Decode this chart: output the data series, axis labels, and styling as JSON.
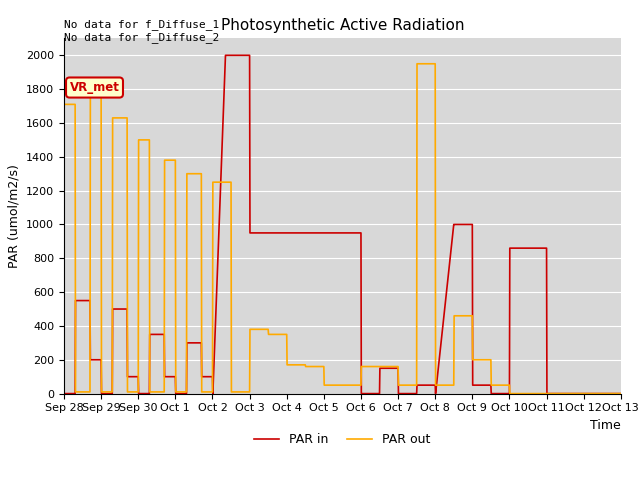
{
  "title": "Photosynthetic Active Radiation",
  "xlabel": "Time",
  "ylabel": "PAR (umol/m2/s)",
  "annotation_text": "No data for f_Diffuse_1\nNo data for f_Diffuse_2",
  "box_label": "VR_met",
  "legend_entries": [
    "PAR in",
    "PAR out"
  ],
  "line_colors": [
    "#cc0000",
    "#ffaa00"
  ],
  "background_color": "#d8d8d8",
  "ylim": [
    0,
    2100
  ],
  "x_tick_labels": [
    "Sep 28",
    "Sep 29",
    "Sep 30",
    "Oct 1",
    "Oct 2",
    "Oct 3",
    "Oct 4",
    "Oct 5",
    "Oct 6",
    "Oct 7",
    "Oct 8",
    "Oct 9",
    "Oct 10",
    "Oct 11",
    "Oct 12",
    "Oct 13"
  ],
  "par_in_x": [
    0,
    0.3,
    0.31,
    0.7,
    0.71,
    1.0,
    1.01,
    1.3,
    1.31,
    1.7,
    1.71,
    2.0,
    2.01,
    2.3,
    2.31,
    2.7,
    2.71,
    3.0,
    3.01,
    3.3,
    3.31,
    3.7,
    3.71,
    4.0,
    4.01,
    4.35,
    4.36,
    5.0,
    5.01,
    6.0,
    7.0,
    8.0,
    8.01,
    8.5,
    8.51,
    9.0,
    9.01,
    9.5,
    9.51,
    10.0,
    10.01,
    10.5,
    10.51,
    11.0,
    11.01,
    11.5,
    11.51,
    12.0,
    12.01,
    13.0,
    13.01,
    15.0
  ],
  "par_in_y": [
    0,
    0,
    550,
    550,
    200,
    200,
    0,
    0,
    500,
    500,
    100,
    100,
    0,
    0,
    350,
    350,
    100,
    100,
    0,
    0,
    300,
    300,
    100,
    100,
    0,
    2000,
    2000,
    2000,
    950,
    950,
    950,
    950,
    0,
    0,
    150,
    150,
    0,
    0,
    50,
    50,
    0,
    1000,
    1000,
    1000,
    50,
    50,
    0,
    0,
    860,
    860,
    0,
    0
  ],
  "par_out_x": [
    0,
    0.3,
    0.31,
    0.7,
    0.71,
    1.0,
    1.01,
    1.3,
    1.31,
    1.7,
    1.71,
    2.0,
    2.01,
    2.3,
    2.31,
    2.7,
    2.71,
    3.0,
    3.01,
    3.3,
    3.31,
    3.7,
    3.71,
    4.0,
    4.01,
    4.5,
    4.51,
    5.0,
    5.01,
    5.5,
    5.51,
    6.0,
    6.01,
    6.5,
    6.51,
    7.0,
    7.01,
    8.0,
    8.01,
    9.0,
    9.01,
    9.5,
    9.51,
    10.0,
    10.01,
    10.5,
    10.51,
    11.0,
    11.01,
    11.5,
    11.51,
    12.0,
    12.01,
    13.0,
    15.0
  ],
  "par_out_y": [
    1710,
    1710,
    10,
    10,
    1770,
    1770,
    10,
    10,
    1630,
    1630,
    10,
    10,
    1500,
    1500,
    10,
    10,
    1380,
    1380,
    10,
    10,
    1300,
    1300,
    10,
    10,
    1250,
    1250,
    10,
    10,
    380,
    380,
    350,
    350,
    170,
    170,
    160,
    160,
    50,
    50,
    160,
    160,
    50,
    50,
    1950,
    1950,
    50,
    50,
    460,
    460,
    200,
    200,
    50,
    50,
    0,
    0,
    0
  ]
}
